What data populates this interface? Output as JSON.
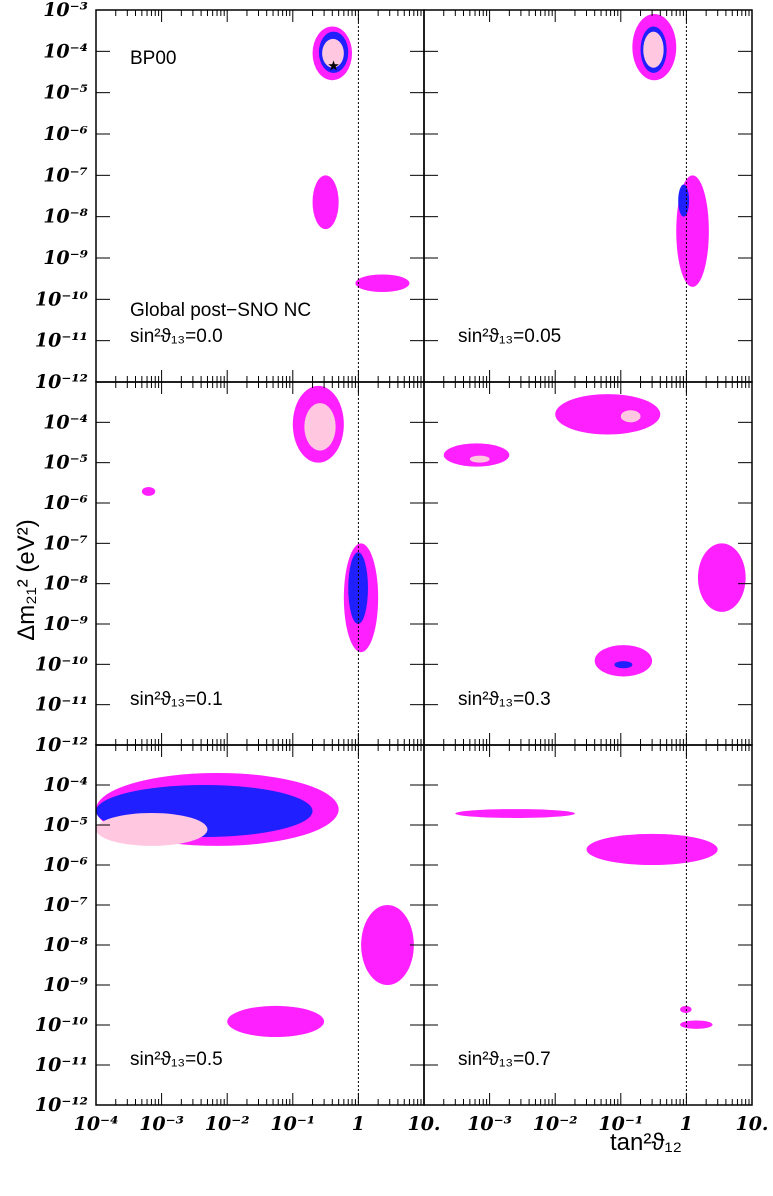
{
  "chart_data": {
    "type": "contour",
    "xlabel": "tan²ϑ₁₂",
    "ylabel": "Δm₂₁² (eV²)",
    "x_scale": "log",
    "y_scale": "log",
    "xlim": [
      0.0001,
      10
    ],
    "ylim": [
      1e-12,
      0.001
    ],
    "x_ticks": [
      "10⁻⁴",
      "10⁻³",
      "10⁻²",
      "10⁻¹",
      "1",
      "10."
    ],
    "y_ticks": [
      "10⁻³",
      "10⁻⁴",
      "10⁻⁵",
      "10⁻⁶",
      "10⁻⁷",
      "10⁻⁸",
      "10⁻⁹",
      "10⁻¹⁰",
      "10⁻¹¹",
      "10⁻¹²"
    ],
    "reference_line_x": 1,
    "colors": {
      "outer": "#ff20ff",
      "middle": "#1f1fff",
      "inner": "#ffc8e0"
    },
    "best_fit_marker": {
      "panel": 0,
      "x": 0.4,
      "y": 4.5e-05,
      "symbol": "★"
    },
    "annotations": {
      "model": "BP00",
      "dataset": "Global post−SNO NC"
    },
    "panels": [
      {
        "label": "sin²ϑ₁₃=0.0",
        "regions": [
          {
            "level": "outer",
            "center": [
              0.4,
              6e-05
            ],
            "span_x": [
              0.2,
              0.8
            ],
            "span_y": [
              2e-05,
              0.0004
            ]
          },
          {
            "level": "middle",
            "center": [
              0.4,
              7e-05
            ],
            "span_x": [
              0.25,
              0.7
            ],
            "span_y": [
              3e-05,
              0.0003
            ]
          },
          {
            "level": "inner",
            "center": [
              0.4,
              7e-05
            ],
            "span_x": [
              0.28,
              0.6
            ],
            "span_y": [
              4e-05,
              0.0002
            ]
          },
          {
            "level": "outer",
            "center": [
              0.3,
              3e-08
            ],
            "span_x": [
              0.2,
              0.5
            ],
            "span_y": [
              5e-09,
              1e-07
            ]
          },
          {
            "level": "outer",
            "center": [
              2.0,
              2e-10
            ],
            "span_x": [
              0.9,
              6
            ],
            "span_y": [
              1.5e-10,
              4e-10
            ]
          }
        ]
      },
      {
        "label": "sin²ϑ₁₃=0.05",
        "regions": [
          {
            "level": "outer",
            "center": [
              0.3,
              0.0001
            ],
            "span_x": [
              0.15,
              0.7
            ],
            "span_y": [
              2e-05,
              0.0008
            ]
          },
          {
            "level": "middle",
            "center": [
              0.3,
              0.0001
            ],
            "span_x": [
              0.2,
              0.5
            ],
            "span_y": [
              3e-05,
              0.0004
            ]
          },
          {
            "level": "inner",
            "center": [
              0.3,
              0.0001
            ],
            "span_x": [
              0.22,
              0.45
            ],
            "span_y": [
              4e-05,
              0.0003
            ]
          },
          {
            "level": "outer",
            "center": [
              1.2,
              5e-09
            ],
            "span_x": [
              0.7,
              2.2
            ],
            "span_y": [
              2e-10,
              1e-07
            ]
          },
          {
            "level": "middle",
            "center": [
              0.95,
              2e-08
            ],
            "span_x": [
              0.75,
              1.1
            ],
            "span_y": [
              1e-08,
              6e-08
            ]
          }
        ]
      },
      {
        "label": "sin²ϑ₁₃=0.1",
        "regions": [
          {
            "level": "outer",
            "center": [
              0.3,
              0.0001
            ],
            "span_x": [
              0.1,
              0.6
            ],
            "span_y": [
              1e-05,
              0.0008
            ]
          },
          {
            "level": "inner",
            "center": [
              0.3,
              0.0001
            ],
            "span_x": [
              0.15,
              0.45
            ],
            "span_y": [
              2e-05,
              0.0003
            ]
          },
          {
            "level": "outer",
            "center": [
              1.0,
              5e-09
            ],
            "span_x": [
              0.6,
              2
            ],
            "span_y": [
              2e-10,
              1e-07
            ]
          },
          {
            "level": "middle",
            "center": [
              1.0,
              1e-08
            ],
            "span_x": [
              0.7,
              1.4
            ],
            "span_y": [
              1e-09,
              6e-08
            ]
          },
          {
            "level": "outer",
            "center": [
              0.00065,
              2e-06
            ],
            "span_x": [
              0.0005,
              0.0008
            ],
            "span_y": [
              1.5e-06,
              2.5e-06
            ]
          }
        ]
      },
      {
        "label": "sin²ϑ₁₃=0.3",
        "regions": [
          {
            "level": "outer",
            "center": [
              0.05,
              0.0001
            ],
            "span_x": [
              0.01,
              0.4
            ],
            "span_y": [
              5e-05,
              0.0005
            ]
          },
          {
            "level": "inner",
            "center": [
              0.15,
              0.00015
            ],
            "span_x": [
              0.1,
              0.2
            ],
            "span_y": [
              0.0001,
              0.0002
            ]
          },
          {
            "level": "outer",
            "center": [
              0.0008,
              1.2e-05
            ],
            "span_x": [
              0.0002,
              0.002
            ],
            "span_y": [
              8e-06,
              3e-05
            ]
          },
          {
            "level": "inner",
            "center": [
              0.0008,
              1.2e-05
            ],
            "span_x": [
              0.0005,
              0.001
            ],
            "span_y": [
              1e-05,
              1.5e-05
            ]
          },
          {
            "level": "outer",
            "center": [
              3.5,
              1e-08
            ],
            "span_x": [
              1.5,
              8
            ],
            "span_y": [
              2e-09,
              1e-07
            ]
          },
          {
            "level": "outer",
            "center": [
              0.1,
              1e-10
            ],
            "span_x": [
              0.04,
              0.3
            ],
            "span_y": [
              5e-11,
              3e-10
            ]
          },
          {
            "level": "middle",
            "center": [
              0.1,
              1e-10
            ],
            "span_x": [
              0.08,
              0.15
            ],
            "span_y": [
              8e-11,
              1.2e-10
            ]
          }
        ]
      },
      {
        "label": "sin²ϑ₁₃=0.5",
        "regions": [
          {
            "level": "outer",
            "center": [
              0.005,
              2e-05
            ],
            "span_x": [
              0.0001,
              0.5
            ],
            "span_y": [
              3e-06,
              0.0002
            ]
          },
          {
            "level": "middle",
            "center": [
              0.005,
              2e-05
            ],
            "span_x": [
              0.0001,
              0.2
            ],
            "span_y": [
              5e-06,
              0.0001
            ]
          },
          {
            "level": "inner",
            "center": [
              0.001,
              1e-05
            ],
            "span_x": [
              0.0001,
              0.005
            ],
            "span_y": [
              3e-06,
              2e-05
            ]
          },
          {
            "level": "outer",
            "center": [
              3.0,
              1e-08
            ],
            "span_x": [
              1.1,
              7
            ],
            "span_y": [
              1e-09,
              1e-07
            ]
          },
          {
            "level": "outer",
            "center": [
              0.05,
              1e-10
            ],
            "span_x": [
              0.01,
              0.3
            ],
            "span_y": [
              5e-11,
              3e-10
            ]
          }
        ]
      },
      {
        "label": "sin²ϑ₁₃=0.7",
        "regions": [
          {
            "level": "outer",
            "center": [
              0.003,
              2e-05
            ],
            "span_x": [
              0.0003,
              0.02
            ],
            "span_y": [
              1.5e-05,
              2.5e-05
            ]
          },
          {
            "level": "outer",
            "center": [
              0.2,
              4e-06
            ],
            "span_x": [
              0.03,
              3
            ],
            "span_y": [
              1e-06,
              6e-06
            ]
          },
          {
            "level": "outer",
            "center": [
              1.0,
              2.5e-10
            ],
            "span_x": [
              0.8,
              1.2
            ],
            "span_y": [
              2e-10,
              3e-10
            ]
          },
          {
            "level": "outer",
            "center": [
              1.5,
              1e-10
            ],
            "span_x": [
              0.8,
              2.5
            ],
            "span_y": [
              8e-11,
              1.3e-10
            ]
          }
        ]
      }
    ]
  }
}
